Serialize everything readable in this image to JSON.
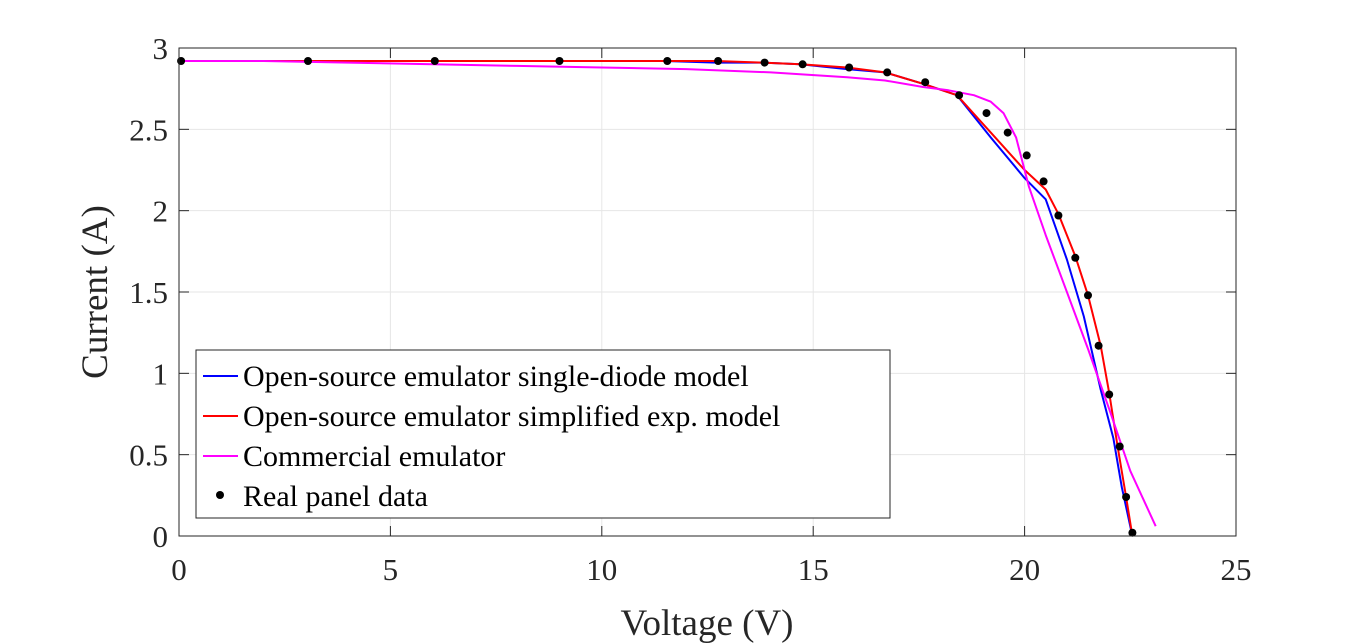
{
  "chart_data": {
    "type": "line",
    "title": "",
    "xlabel": "Voltage (V)",
    "ylabel": "Current (A)",
    "xlim": [
      0,
      25
    ],
    "ylim": [
      0,
      3
    ],
    "xticks": [
      0,
      5,
      10,
      15,
      20,
      25
    ],
    "xtick_labels": [
      "0",
      "5",
      "10",
      "15",
      "20",
      "25"
    ],
    "yticks": [
      0,
      0.5,
      1,
      1.5,
      2,
      2.5,
      3
    ],
    "ytick_labels": [
      "0",
      "0.5",
      "1",
      "1.5",
      "2",
      "2.5",
      "3"
    ],
    "grid": true,
    "legend_position": "bottom-left",
    "series": [
      {
        "name": "Open-source emulator single-diode model",
        "kind": "line",
        "color": "#0000ff",
        "x": [
          0.0,
          3.0,
          6.0,
          9.0,
          11.5,
          12.7,
          13.8,
          14.7,
          15.8,
          16.7,
          17.6,
          18.4,
          19.2,
          20.0,
          20.5,
          21.0,
          21.4,
          21.8,
          22.1,
          22.3,
          22.55
        ],
        "y": [
          2.92,
          2.92,
          2.92,
          2.92,
          2.92,
          2.91,
          2.91,
          2.9,
          2.87,
          2.85,
          2.78,
          2.71,
          2.45,
          2.2,
          2.07,
          1.7,
          1.35,
          0.9,
          0.6,
          0.3,
          0.0
        ]
      },
      {
        "name": "Open-source emulator simplified exp. model",
        "kind": "line",
        "color": "#ff0000",
        "x": [
          0.0,
          3.0,
          6.0,
          9.0,
          11.5,
          12.7,
          13.8,
          14.7,
          15.8,
          16.7,
          17.6,
          18.4,
          19.2,
          20.0,
          20.5,
          20.8,
          21.2,
          21.5,
          21.8,
          22.0,
          22.2,
          22.4,
          22.55
        ],
        "y": [
          2.92,
          2.92,
          2.92,
          2.92,
          2.92,
          2.92,
          2.91,
          2.9,
          2.88,
          2.85,
          2.78,
          2.71,
          2.48,
          2.25,
          2.13,
          1.98,
          1.72,
          1.48,
          1.17,
          0.88,
          0.55,
          0.24,
          0.0
        ]
      },
      {
        "name": "Commercial emulator",
        "kind": "line",
        "color": "#ff00ff",
        "x": [
          0.0,
          2.0,
          4.0,
          6.0,
          8.0,
          10.0,
          12.0,
          14.0,
          15.8,
          16.7,
          17.6,
          18.2,
          18.8,
          19.2,
          19.5,
          19.8,
          20.1,
          20.5,
          21.0,
          21.5,
          22.0,
          22.5,
          23.1
        ],
        "y": [
          2.92,
          2.92,
          2.91,
          2.9,
          2.89,
          2.88,
          2.87,
          2.85,
          2.82,
          2.8,
          2.76,
          2.74,
          2.71,
          2.67,
          2.6,
          2.45,
          2.15,
          1.85,
          1.5,
          1.15,
          0.78,
          0.4,
          0.06
        ]
      },
      {
        "name": "Real panel data",
        "kind": "scatter",
        "color": "#000000",
        "x": [
          0.05,
          3.05,
          6.05,
          9.0,
          11.55,
          12.75,
          13.85,
          14.75,
          15.85,
          16.75,
          17.65,
          18.45,
          19.1,
          19.6,
          20.05,
          20.45,
          20.8,
          21.2,
          21.5,
          21.75,
          22.0,
          22.25,
          22.4,
          22.55
        ],
        "y": [
          2.92,
          2.92,
          2.92,
          2.92,
          2.92,
          2.92,
          2.91,
          2.9,
          2.88,
          2.85,
          2.79,
          2.71,
          2.6,
          2.48,
          2.34,
          2.18,
          1.97,
          1.71,
          1.48,
          1.17,
          0.87,
          0.55,
          0.24,
          0.02
        ]
      }
    ]
  }
}
